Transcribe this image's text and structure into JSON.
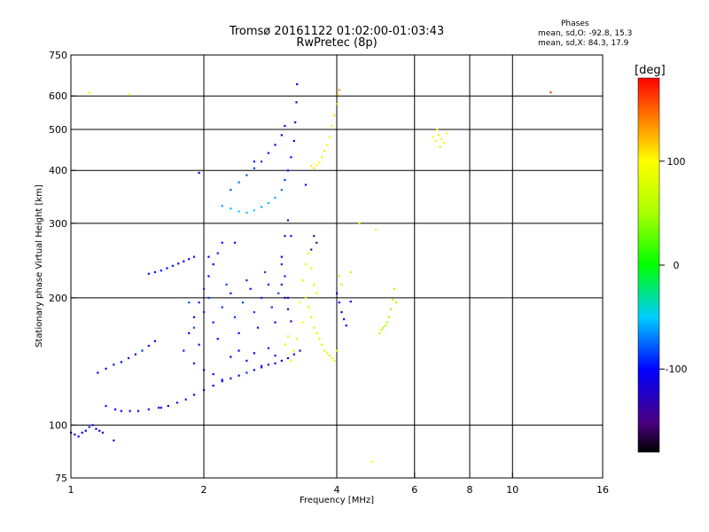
{
  "header": {
    "title_line1": "Tromsø 20161122 01:02:00-01:03:43",
    "title_line2": "RwPretec (8p)"
  },
  "stats": {
    "heading": "Phases",
    "line1": "mean, sd,O: -92.8, 15.3",
    "line2": "mean, sd,X:  84.3, 17.9"
  },
  "colorbar": {
    "label": "[deg]",
    "ticks": [
      {
        "value": 100,
        "label": "100"
      },
      {
        "value": 0,
        "label": "0"
      },
      {
        "value": -100,
        "label": "-100"
      }
    ],
    "range": [
      -180,
      180
    ]
  },
  "chart_data": {
    "type": "scatter",
    "title": "Tromsø 20161122 01:02:00-01:03:43 RwPretec (8p)",
    "xlabel": "Frequency [MHz]",
    "ylabel": "Stationary phase Virtual Height [km]",
    "xscale": "log",
    "yscale": "log",
    "xlim": [
      1,
      16
    ],
    "ylim": [
      75,
      750
    ],
    "xticks": [
      {
        "value": 1,
        "label": "1"
      },
      {
        "value": 2,
        "label": "2"
      },
      {
        "value": 4,
        "label": "4"
      },
      {
        "value": 6,
        "label": "6"
      },
      {
        "value": 8,
        "label": "8"
      },
      {
        "value": 10,
        "label": "10"
      },
      {
        "value": 16,
        "label": "16"
      }
    ],
    "yticks": [
      {
        "value": 75,
        "label": "75"
      },
      {
        "value": 100,
        "label": "100"
      },
      {
        "value": 200,
        "label": "200"
      },
      {
        "value": 300,
        "label": "300"
      },
      {
        "value": 400,
        "label": "400"
      },
      {
        "value": 500,
        "label": "500"
      },
      {
        "value": 600,
        "label": "600"
      },
      {
        "value": 750,
        "label": "750"
      }
    ],
    "grid_x": [
      2,
      4,
      6,
      8,
      10
    ],
    "grid_y": [
      100,
      200,
      300,
      400,
      500,
      600
    ],
    "color_encodes": "phase [deg]",
    "series": [
      {
        "name": "O-mode",
        "mean_phase": -92.8,
        "sd_phase": 15.3,
        "points": [
          [
            1.0,
            96,
            -110
          ],
          [
            1.02,
            95,
            -105
          ],
          [
            1.04,
            94,
            -115
          ],
          [
            1.06,
            96,
            -100
          ],
          [
            1.08,
            97,
            -108
          ],
          [
            1.1,
            99,
            -95
          ],
          [
            1.12,
            100,
            -112
          ],
          [
            1.14,
            98,
            -100
          ],
          [
            1.16,
            97,
            -105
          ],
          [
            1.18,
            96,
            -110
          ],
          [
            1.2,
            111,
            -95
          ],
          [
            1.26,
            109,
            -100
          ],
          [
            1.3,
            108,
            -105
          ],
          [
            1.36,
            108,
            -110
          ],
          [
            1.42,
            108,
            -100
          ],
          [
            1.5,
            109,
            -95
          ],
          [
            1.58,
            110,
            -105
          ],
          [
            1.66,
            111,
            -100
          ],
          [
            1.74,
            113,
            -110
          ],
          [
            1.82,
            115,
            -95
          ],
          [
            1.9,
            118,
            -100
          ],
          [
            2.0,
            121,
            -105
          ],
          [
            2.1,
            124,
            -110
          ],
          [
            2.2,
            127,
            -100
          ],
          [
            2.3,
            129,
            -95
          ],
          [
            2.4,
            131,
            -105
          ],
          [
            2.5,
            133,
            -90
          ],
          [
            2.6,
            135,
            -100
          ],
          [
            2.7,
            137,
            -110
          ],
          [
            2.8,
            139,
            -95
          ],
          [
            2.9,
            140,
            -105
          ],
          [
            3.0,
            142,
            -100
          ],
          [
            3.1,
            144,
            -110
          ],
          [
            3.2,
            147,
            -95
          ],
          [
            3.3,
            150,
            -120
          ],
          [
            1.15,
            133,
            -100
          ],
          [
            1.2,
            136,
            -105
          ],
          [
            1.25,
            139,
            -95
          ],
          [
            1.3,
            141,
            -100
          ],
          [
            1.35,
            144,
            -110
          ],
          [
            1.4,
            147,
            -100
          ],
          [
            1.45,
            150,
            -90
          ],
          [
            1.5,
            154,
            -95
          ],
          [
            1.55,
            158,
            -105
          ],
          [
            1.5,
            228,
            -95
          ],
          [
            1.55,
            230,
            -100
          ],
          [
            1.6,
            232,
            -105
          ],
          [
            1.65,
            235,
            -100
          ],
          [
            1.7,
            238,
            -95
          ],
          [
            1.75,
            241,
            -110
          ],
          [
            1.8,
            244,
            -100
          ],
          [
            1.85,
            247,
            -105
          ],
          [
            1.9,
            250,
            -95
          ],
          [
            1.8,
            150,
            -95
          ],
          [
            1.85,
            165,
            -100
          ],
          [
            1.9,
            180,
            -105
          ],
          [
            1.95,
            195,
            -95
          ],
          [
            2.0,
            210,
            -90
          ],
          [
            2.05,
            225,
            -100
          ],
          [
            2.1,
            240,
            -105
          ],
          [
            2.15,
            255,
            -95
          ],
          [
            2.2,
            270,
            -100
          ],
          [
            1.85,
            195,
            -80
          ],
          [
            1.9,
            170,
            -85
          ],
          [
            1.95,
            155,
            -95
          ],
          [
            2.0,
            185,
            -90
          ],
          [
            2.05,
            200,
            -85
          ],
          [
            2.1,
            175,
            -95
          ],
          [
            2.15,
            160,
            -100
          ],
          [
            2.2,
            190,
            -90
          ],
          [
            2.25,
            215,
            -85
          ],
          [
            2.3,
            205,
            -95
          ],
          [
            2.35,
            180,
            -90
          ],
          [
            2.4,
            165,
            -100
          ],
          [
            2.45,
            195,
            -85
          ],
          [
            2.5,
            220,
            -90
          ],
          [
            2.55,
            210,
            -95
          ],
          [
            2.6,
            185,
            -85
          ],
          [
            2.65,
            170,
            -100
          ],
          [
            2.7,
            200,
            -90
          ],
          [
            2.75,
            230,
            -85
          ],
          [
            2.8,
            215,
            -95
          ],
          [
            2.85,
            190,
            -90
          ],
          [
            2.9,
            175,
            -100
          ],
          [
            2.95,
            205,
            -85
          ],
          [
            3.0,
            240,
            -90
          ],
          [
            3.05,
            225,
            -95
          ],
          [
            3.1,
            200,
            -100
          ],
          [
            1.9,
            140,
            -95
          ],
          [
            2.0,
            135,
            -100
          ],
          [
            2.1,
            132,
            -105
          ],
          [
            2.2,
            128,
            -95
          ],
          [
            2.3,
            145,
            -100
          ],
          [
            2.4,
            150,
            -105
          ],
          [
            2.5,
            142,
            -95
          ],
          [
            2.6,
            148,
            -100
          ],
          [
            2.7,
            138,
            -110
          ],
          [
            2.8,
            152,
            -95
          ],
          [
            2.9,
            146,
            -100
          ],
          [
            2.2,
            330,
            -60
          ],
          [
            2.3,
            325,
            -55
          ],
          [
            2.4,
            320,
            -50
          ],
          [
            2.5,
            318,
            -45
          ],
          [
            2.6,
            322,
            -50
          ],
          [
            2.7,
            328,
            -55
          ],
          [
            2.8,
            335,
            -50
          ],
          [
            2.9,
            345,
            -60
          ],
          [
            3.0,
            360,
            -70
          ],
          [
            3.05,
            380,
            -85
          ],
          [
            3.1,
            400,
            -95
          ],
          [
            3.15,
            430,
            -100
          ],
          [
            3.2,
            470,
            -105
          ],
          [
            3.22,
            520,
            -110
          ],
          [
            3.24,
            580,
            -115
          ],
          [
            3.25,
            640,
            -120
          ],
          [
            2.3,
            360,
            -80
          ],
          [
            2.4,
            375,
            -75
          ],
          [
            2.5,
            390,
            -80
          ],
          [
            2.6,
            405,
            -85
          ],
          [
            2.7,
            420,
            -90
          ],
          [
            2.8,
            440,
            -95
          ],
          [
            2.9,
            460,
            -100
          ],
          [
            3.0,
            485,
            -105
          ],
          [
            3.05,
            510,
            -110
          ],
          [
            3.0,
            250,
            -110
          ],
          [
            3.05,
            280,
            -120
          ],
          [
            3.1,
            305,
            -125
          ],
          [
            3.0,
            215,
            -140
          ],
          [
            3.05,
            200,
            -135
          ],
          [
            3.1,
            188,
            -130
          ],
          [
            3.15,
            176,
            -125
          ],
          [
            3.5,
            260,
            -150
          ],
          [
            3.55,
            280,
            -145
          ],
          [
            3.6,
            270,
            -140
          ],
          [
            4.0,
            205,
            -110
          ],
          [
            4.05,
            195,
            -105
          ],
          [
            4.1,
            185,
            -110
          ],
          [
            4.15,
            178,
            -100
          ],
          [
            4.2,
            172,
            -105
          ],
          [
            4.3,
            196,
            -110
          ],
          [
            1.95,
            395,
            -100
          ],
          [
            2.6,
            420,
            -95
          ],
          [
            3.15,
            280,
            -100
          ],
          [
            1.25,
            92,
            -110
          ],
          [
            1.6,
            110,
            -100
          ],
          [
            3.4,
            370,
            -95
          ],
          [
            2.05,
            250,
            -105
          ],
          [
            2.35,
            270,
            -95
          ]
        ]
      },
      {
        "name": "X-mode",
        "mean_phase": 84.3,
        "sd_phase": 17.9,
        "points": [
          [
            3.5,
            410,
            105
          ],
          [
            3.55,
            405,
            110
          ],
          [
            3.6,
            412,
            100
          ],
          [
            3.65,
            418,
            95
          ],
          [
            3.7,
            430,
            105
          ],
          [
            3.75,
            445,
            110
          ],
          [
            3.8,
            460,
            100
          ],
          [
            3.85,
            480,
            95
          ],
          [
            3.9,
            510,
            105
          ],
          [
            3.95,
            540,
            110
          ],
          [
            4.0,
            575,
            120
          ],
          [
            4.02,
            605,
            125
          ],
          [
            4.05,
            620,
            130
          ],
          [
            3.4,
            200,
            80
          ],
          [
            3.45,
            190,
            75
          ],
          [
            3.5,
            180,
            70
          ],
          [
            3.55,
            170,
            80
          ],
          [
            3.6,
            165,
            85
          ],
          [
            3.65,
            160,
            75
          ],
          [
            3.7,
            155,
            70
          ],
          [
            3.75,
            150,
            80
          ],
          [
            3.8,
            148,
            85
          ],
          [
            3.85,
            146,
            75
          ],
          [
            3.9,
            144,
            90
          ],
          [
            3.95,
            142,
            85
          ],
          [
            4.0,
            150,
            80
          ],
          [
            3.35,
            220,
            75
          ],
          [
            3.4,
            240,
            80
          ],
          [
            3.45,
            255,
            70
          ],
          [
            3.5,
            235,
            85
          ],
          [
            3.55,
            215,
            75
          ],
          [
            3.6,
            205,
            80
          ],
          [
            3.3,
            195,
            85
          ],
          [
            3.35,
            175,
            90
          ],
          [
            3.25,
            160,
            85
          ],
          [
            3.2,
            150,
            90
          ],
          [
            3.15,
            142,
            95
          ],
          [
            5.0,
            165,
            55
          ],
          [
            5.05,
            168,
            60
          ],
          [
            5.1,
            170,
            50
          ],
          [
            5.15,
            172,
            55
          ],
          [
            5.2,
            175,
            60
          ],
          [
            5.25,
            180,
            55
          ],
          [
            5.3,
            188,
            50
          ],
          [
            5.35,
            198,
            60
          ],
          [
            5.4,
            210,
            55
          ],
          [
            5.45,
            195,
            50
          ],
          [
            6.6,
            480,
            95
          ],
          [
            6.7,
            470,
            90
          ],
          [
            6.8,
            485,
            85
          ],
          [
            6.9,
            475,
            95
          ],
          [
            7.0,
            465,
            90
          ],
          [
            6.75,
            500,
            100
          ],
          [
            6.85,
            455,
            80
          ],
          [
            7.1,
            490,
            95
          ],
          [
            4.05,
            225,
            60
          ],
          [
            4.1,
            215,
            55
          ],
          [
            4.3,
            230,
            65
          ],
          [
            4.5,
            300,
            90
          ],
          [
            4.9,
            290,
            80
          ],
          [
            12.2,
            612,
            160
          ],
          [
            1.35,
            605,
            95
          ],
          [
            4.8,
            82,
            90
          ],
          [
            1.1,
            610,
            80
          ],
          [
            3.05,
            155,
            75
          ],
          [
            3.1,
            162,
            80
          ]
        ]
      }
    ]
  }
}
